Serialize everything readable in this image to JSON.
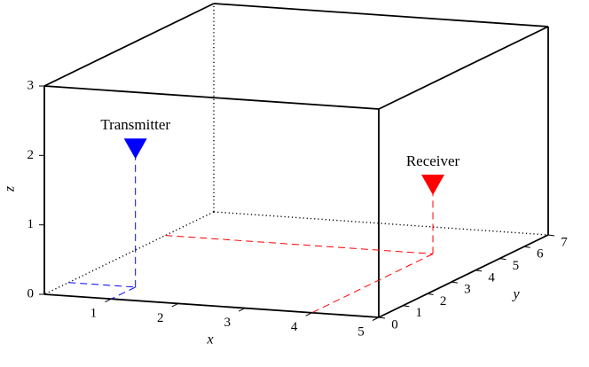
{
  "chart_data": {
    "type": "scatter3d",
    "x_label": "x",
    "y_label": "y",
    "z_label": "z",
    "xlim": [
      0,
      5
    ],
    "ylim": [
      0,
      7
    ],
    "zlim": [
      0,
      3
    ],
    "xticks": [
      1,
      2,
      3,
      4,
      5
    ],
    "yticks": [
      0,
      1,
      2,
      3,
      4,
      5,
      6,
      7
    ],
    "zticks": [
      0,
      1,
      2,
      3
    ],
    "series": [
      {
        "name": "Transmitter",
        "color": "#0000ff",
        "x": [
          1
        ],
        "y": [
          1
        ],
        "z": [
          2
        ]
      },
      {
        "name": "Receiver",
        "color": "#ff0000",
        "x": [
          4
        ],
        "y": [
          5
        ],
        "z": [
          1
        ]
      }
    ]
  }
}
